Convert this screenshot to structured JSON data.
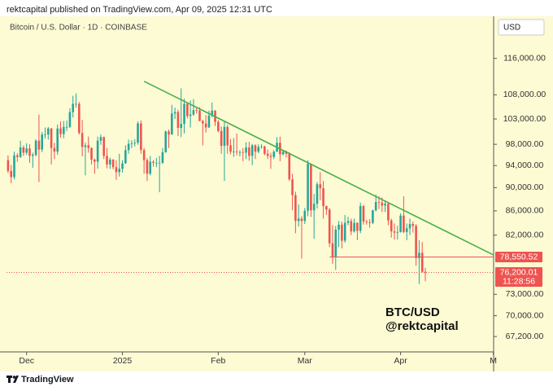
{
  "header": {
    "publisher": "rektcapital published on TradingView.com, Apr 09, 2025 12:31 UTC"
  },
  "chart_data": {
    "type": "candlestick",
    "title": "Bitcoin / U.S. Dollar · 1D · COINBASE",
    "currency": "USD",
    "log_scale": true,
    "grid": false,
    "background": "#fdfbd4",
    "up_color": "#26a69a",
    "down_color": "#ef5350",
    "candles": [
      [
        95000,
        95900,
        92600,
        93000
      ],
      [
        93000,
        94100,
        90800,
        91900
      ],
      [
        91900,
        96600,
        91500,
        95900
      ],
      [
        95900,
        96300,
        94700,
        95600
      ],
      [
        95600,
        98700,
        95400,
        97400
      ],
      [
        97400,
        97800,
        95800,
        96400
      ],
      [
        96400,
        98200,
        96000,
        97200
      ],
      [
        97200,
        98000,
        94500,
        95800
      ],
      [
        95800,
        96400,
        93600,
        96000
      ],
      [
        96000,
        99000,
        95700,
        98700
      ],
      [
        98700,
        103900,
        91000,
        97000
      ],
      [
        97000,
        100400,
        96500,
        99900
      ],
      [
        99900,
        101300,
        99100,
        99900
      ],
      [
        99900,
        101400,
        98900,
        101100
      ],
      [
        101100,
        101200,
        94200,
        97300
      ],
      [
        97300,
        98300,
        95200,
        96600
      ],
      [
        96600,
        101900,
        96000,
        101100
      ],
      [
        101100,
        102500,
        99300,
        100000
      ],
      [
        100000,
        102600,
        99200,
        101400
      ],
      [
        101400,
        102700,
        100600,
        101400
      ],
      [
        101400,
        105200,
        101200,
        104400
      ],
      [
        104400,
        107800,
        103300,
        106100
      ],
      [
        106100,
        108300,
        105300,
        106100
      ],
      [
        106100,
        106500,
        99900,
        100200
      ],
      [
        100200,
        102800,
        95700,
        97500
      ],
      [
        97500,
        98300,
        92200,
        97800
      ],
      [
        97800,
        99500,
        96400,
        97300
      ],
      [
        97300,
        97400,
        94200,
        95100
      ],
      [
        95100,
        95300,
        92500,
        94700
      ],
      [
        94700,
        99500,
        93400,
        98700
      ],
      [
        98700,
        99900,
        97900,
        99400
      ],
      [
        99400,
        99500,
        95200,
        95800
      ],
      [
        95800,
        97300,
        93500,
        94200
      ],
      [
        94200,
        95500,
        93400,
        95100
      ],
      [
        95100,
        95200,
        93300,
        93700
      ],
      [
        93700,
        95000,
        91400,
        92800
      ],
      [
        92800,
        96200,
        92000,
        93400
      ],
      [
        93400,
        95000,
        92700,
        94400
      ],
      [
        94400,
        97800,
        94300,
        96900
      ],
      [
        96900,
        98900,
        96200,
        98100
      ],
      [
        98100,
        98800,
        97300,
        98200
      ],
      [
        98200,
        99000,
        97600,
        98300
      ],
      [
        98300,
        102500,
        97900,
        102100
      ],
      [
        102100,
        102700,
        96200,
        96900
      ],
      [
        96900,
        97300,
        92500,
        95000
      ],
      [
        95000,
        95400,
        91200,
        92500
      ],
      [
        92500,
        95800,
        92200,
        94700
      ],
      [
        94700,
        95000,
        93800,
        94500
      ],
      [
        94500,
        95400,
        93700,
        94500
      ],
      [
        94500,
        95800,
        89200,
        94500
      ],
      [
        94500,
        97300,
        94300,
        96500
      ],
      [
        96500,
        100700,
        96400,
        100500
      ],
      [
        100500,
        100900,
        97300,
        99900
      ],
      [
        99900,
        105900,
        99900,
        104100
      ],
      [
        104100,
        105300,
        103000,
        104400
      ],
      [
        104400,
        104900,
        99600,
        101200
      ],
      [
        101200,
        109400,
        99400,
        102000
      ],
      [
        102000,
        107200,
        100100,
        106100
      ],
      [
        106100,
        106400,
        103100,
        103600
      ],
      [
        103600,
        106800,
        101300,
        103900
      ],
      [
        103900,
        107100,
        103600,
        104800
      ],
      [
        104800,
        105500,
        104100,
        104700
      ],
      [
        104700,
        105400,
        102500,
        102600
      ],
      [
        102600,
        102800,
        97800,
        102100
      ],
      [
        102100,
        103800,
        100300,
        101300
      ],
      [
        101300,
        104700,
        101200,
        103700
      ],
      [
        103700,
        106400,
        103300,
        104700
      ],
      [
        104700,
        104800,
        101600,
        102400
      ],
      [
        102400,
        102800,
        100300,
        100600
      ],
      [
        100600,
        101500,
        96200,
        97700
      ],
      [
        97700,
        102500,
        91200,
        101400
      ],
      [
        101400,
        101800,
        96200,
        97800
      ],
      [
        97800,
        99000,
        96100,
        96600
      ],
      [
        96600,
        99200,
        95600,
        96600
      ],
      [
        96600,
        100100,
        95900,
        96500
      ],
      [
        96500,
        96900,
        95700,
        96500
      ],
      [
        96500,
        97300,
        94800,
        96400
      ],
      [
        96400,
        98400,
        95200,
        97400
      ],
      [
        97400,
        98500,
        94900,
        95800
      ],
      [
        95800,
        98100,
        94100,
        97800
      ],
      [
        97800,
        98000,
        95200,
        96600
      ],
      [
        96600,
        98000,
        96300,
        97500
      ],
      [
        97500,
        98000,
        97200,
        97600
      ],
      [
        97600,
        97700,
        95900,
        96200
      ],
      [
        96200,
        97000,
        95200,
        95800
      ],
      [
        95800,
        96400,
        93400,
        95600
      ],
      [
        95600,
        96900,
        95200,
        96600
      ],
      [
        96600,
        99400,
        96500,
        98300
      ],
      [
        98300,
        99500,
        94800,
        96100
      ],
      [
        96100,
        96900,
        95900,
        96600
      ],
      [
        96600,
        96800,
        95500,
        96200
      ],
      [
        96200,
        96500,
        91200,
        91500
      ],
      [
        91500,
        92500,
        86100,
        88700
      ],
      [
        88700,
        89300,
        82300,
        84300
      ],
      [
        84300,
        87100,
        83400,
        84700
      ],
      [
        84700,
        85100,
        78300,
        84300
      ],
      [
        84300,
        86500,
        83800,
        86000
      ],
      [
        86000,
        95000,
        85100,
        94300
      ],
      [
        94300,
        94400,
        85000,
        86100
      ],
      [
        86100,
        88900,
        81400,
        87200
      ],
      [
        87200,
        91000,
        86400,
        90600
      ],
      [
        90600,
        92800,
        87800,
        89900
      ],
      [
        89900,
        91200,
        84700,
        86800
      ],
      [
        86800,
        86900,
        85300,
        86200
      ],
      [
        86200,
        86500,
        80100,
        80700
      ],
      [
        80700,
        83600,
        77500,
        78600
      ],
      [
        78600,
        83500,
        76600,
        82900
      ],
      [
        82900,
        84300,
        80100,
        83700
      ],
      [
        83700,
        84200,
        79900,
        81100
      ],
      [
        81100,
        85300,
        80800,
        84000
      ],
      [
        84000,
        85000,
        83600,
        84300
      ],
      [
        84300,
        84700,
        82000,
        82600
      ],
      [
        82600,
        84700,
        82400,
        84000
      ],
      [
        84000,
        84100,
        81200,
        82700
      ],
      [
        82700,
        87400,
        82300,
        86800
      ],
      [
        86800,
        87000,
        83700,
        84200
      ],
      [
        84200,
        84500,
        83700,
        84100
      ],
      [
        84100,
        84600,
        83200,
        84000
      ],
      [
        84000,
        86200,
        83800,
        86100
      ],
      [
        86100,
        88800,
        85900,
        87500
      ],
      [
        87500,
        88500,
        86300,
        87400
      ],
      [
        87400,
        88300,
        85800,
        86900
      ],
      [
        86900,
        87800,
        85800,
        87200
      ],
      [
        87200,
        87500,
        83600,
        84400
      ],
      [
        84400,
        84700,
        81600,
        82600
      ],
      [
        82600,
        83900,
        81300,
        82400
      ],
      [
        82400,
        83500,
        81300,
        82500
      ],
      [
        82500,
        85600,
        82400,
        85200
      ],
      [
        85200,
        88500,
        82300,
        82500
      ],
      [
        82500,
        83900,
        81200,
        83100
      ],
      [
        83100,
        84700,
        82000,
        83800
      ],
      [
        83800,
        84200,
        82400,
        83500
      ],
      [
        83500,
        83800,
        77200,
        78400
      ],
      [
        78400,
        81200,
        74500,
        79200
      ],
      [
        79200,
        80900,
        76200,
        76300
      ],
      [
        76300,
        76900,
        74900,
        76200
      ]
    ],
    "xlim": [
      -0.5,
      157.1
    ],
    "xticks": [
      {
        "value": 6,
        "label": "Dec"
      },
      {
        "value": 37,
        "label": "2025"
      },
      {
        "value": 68,
        "label": "Feb"
      },
      {
        "value": 96,
        "label": "Mar"
      },
      {
        "value": 127,
        "label": "Apr"
      },
      {
        "value": 157,
        "label": "M"
      }
    ],
    "ylim": [
      65200,
      126000
    ],
    "yticks": [
      {
        "value": 67200,
        "label": "67,200.00"
      },
      {
        "value": 70000,
        "label": "70,000.00"
      },
      {
        "value": 73000,
        "label": "73,000.00"
      },
      {
        "value": 82000,
        "label": "82,000.00"
      },
      {
        "value": 86000,
        "label": "86,000.00"
      },
      {
        "value": 90000,
        "label": "90,000.00"
      },
      {
        "value": 94000,
        "label": "94,000.00"
      },
      {
        "value": 98000,
        "label": "98,000.00"
      },
      {
        "value": 103000,
        "label": "103,000.00"
      },
      {
        "value": 108000,
        "label": "108,000.00"
      },
      {
        "value": 116000,
        "label": "116,000.00"
      }
    ],
    "levels": [
      {
        "value": 78550.52,
        "label": "78,550.52",
        "color": "#ef5350",
        "x_start": 104
      },
      {
        "value": 76200.01,
        "label": "76,200.01",
        "countdown": "11:28:56",
        "color": "#ef5350"
      }
    ],
    "trendline": {
      "x": [
        44,
        157.6
      ],
      "y": [
        110900,
        78860
      ],
      "color": "#4caf50"
    },
    "watermark": [
      "BTC/USD",
      "@rektcapital"
    ]
  },
  "footer": {
    "brand": "TradingView"
  }
}
